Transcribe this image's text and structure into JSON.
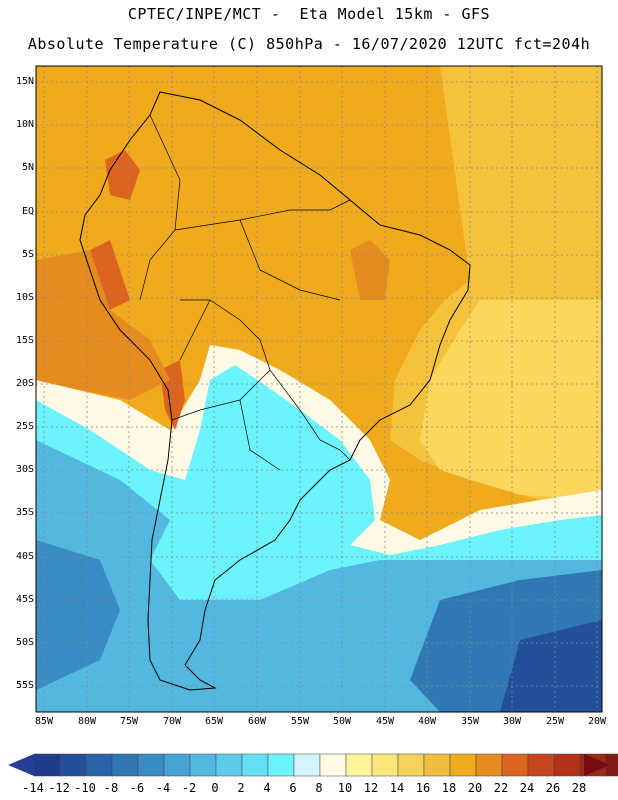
{
  "header": {
    "line1": "CPTEC/INPE/MCT -  Eta Model 15km - GFS",
    "line2": "Absolute Temperature (C) 850hPa - 16/07/2020 12UTC fct=204h"
  },
  "lat_labels": [
    "15N",
    "10N",
    "5N",
    "EQ",
    "5S",
    "10S",
    "15S",
    "20S",
    "25S",
    "30S",
    "35S",
    "40S",
    "45S",
    "50S",
    "55S"
  ],
  "lon_labels": [
    "85W",
    "80W",
    "75W",
    "70W",
    "65W",
    "60W",
    "55W",
    "50W",
    "45W",
    "40W",
    "35W",
    "30W",
    "25W",
    "20W"
  ],
  "colorbar": {
    "ticks": [
      "-14",
      "-12",
      "-10",
      "-8",
      "-6",
      "-4",
      "-2",
      "0",
      "2",
      "4",
      "6",
      "8",
      "10",
      "12",
      "14",
      "16",
      "18",
      "20",
      "22",
      "24",
      "26",
      "28"
    ],
    "colors": [
      "#1e3c8c",
      "#24509a",
      "#2a64a8",
      "#3078b4",
      "#3a8cc4",
      "#46a4d4",
      "#52b8e0",
      "#5cccec",
      "#64e0f4",
      "#6cf4fc",
      "#d2f4fc",
      "#fffae6",
      "#fff59a",
      "#fae678",
      "#f5d25a",
      "#f0be3c",
      "#f0aa1e",
      "#e68c1e",
      "#dc641e",
      "#c8461e",
      "#b43219",
      "#9b2814",
      "#821914"
    ],
    "under_color": "#283c96",
    "over_color": "#780a14"
  }
}
